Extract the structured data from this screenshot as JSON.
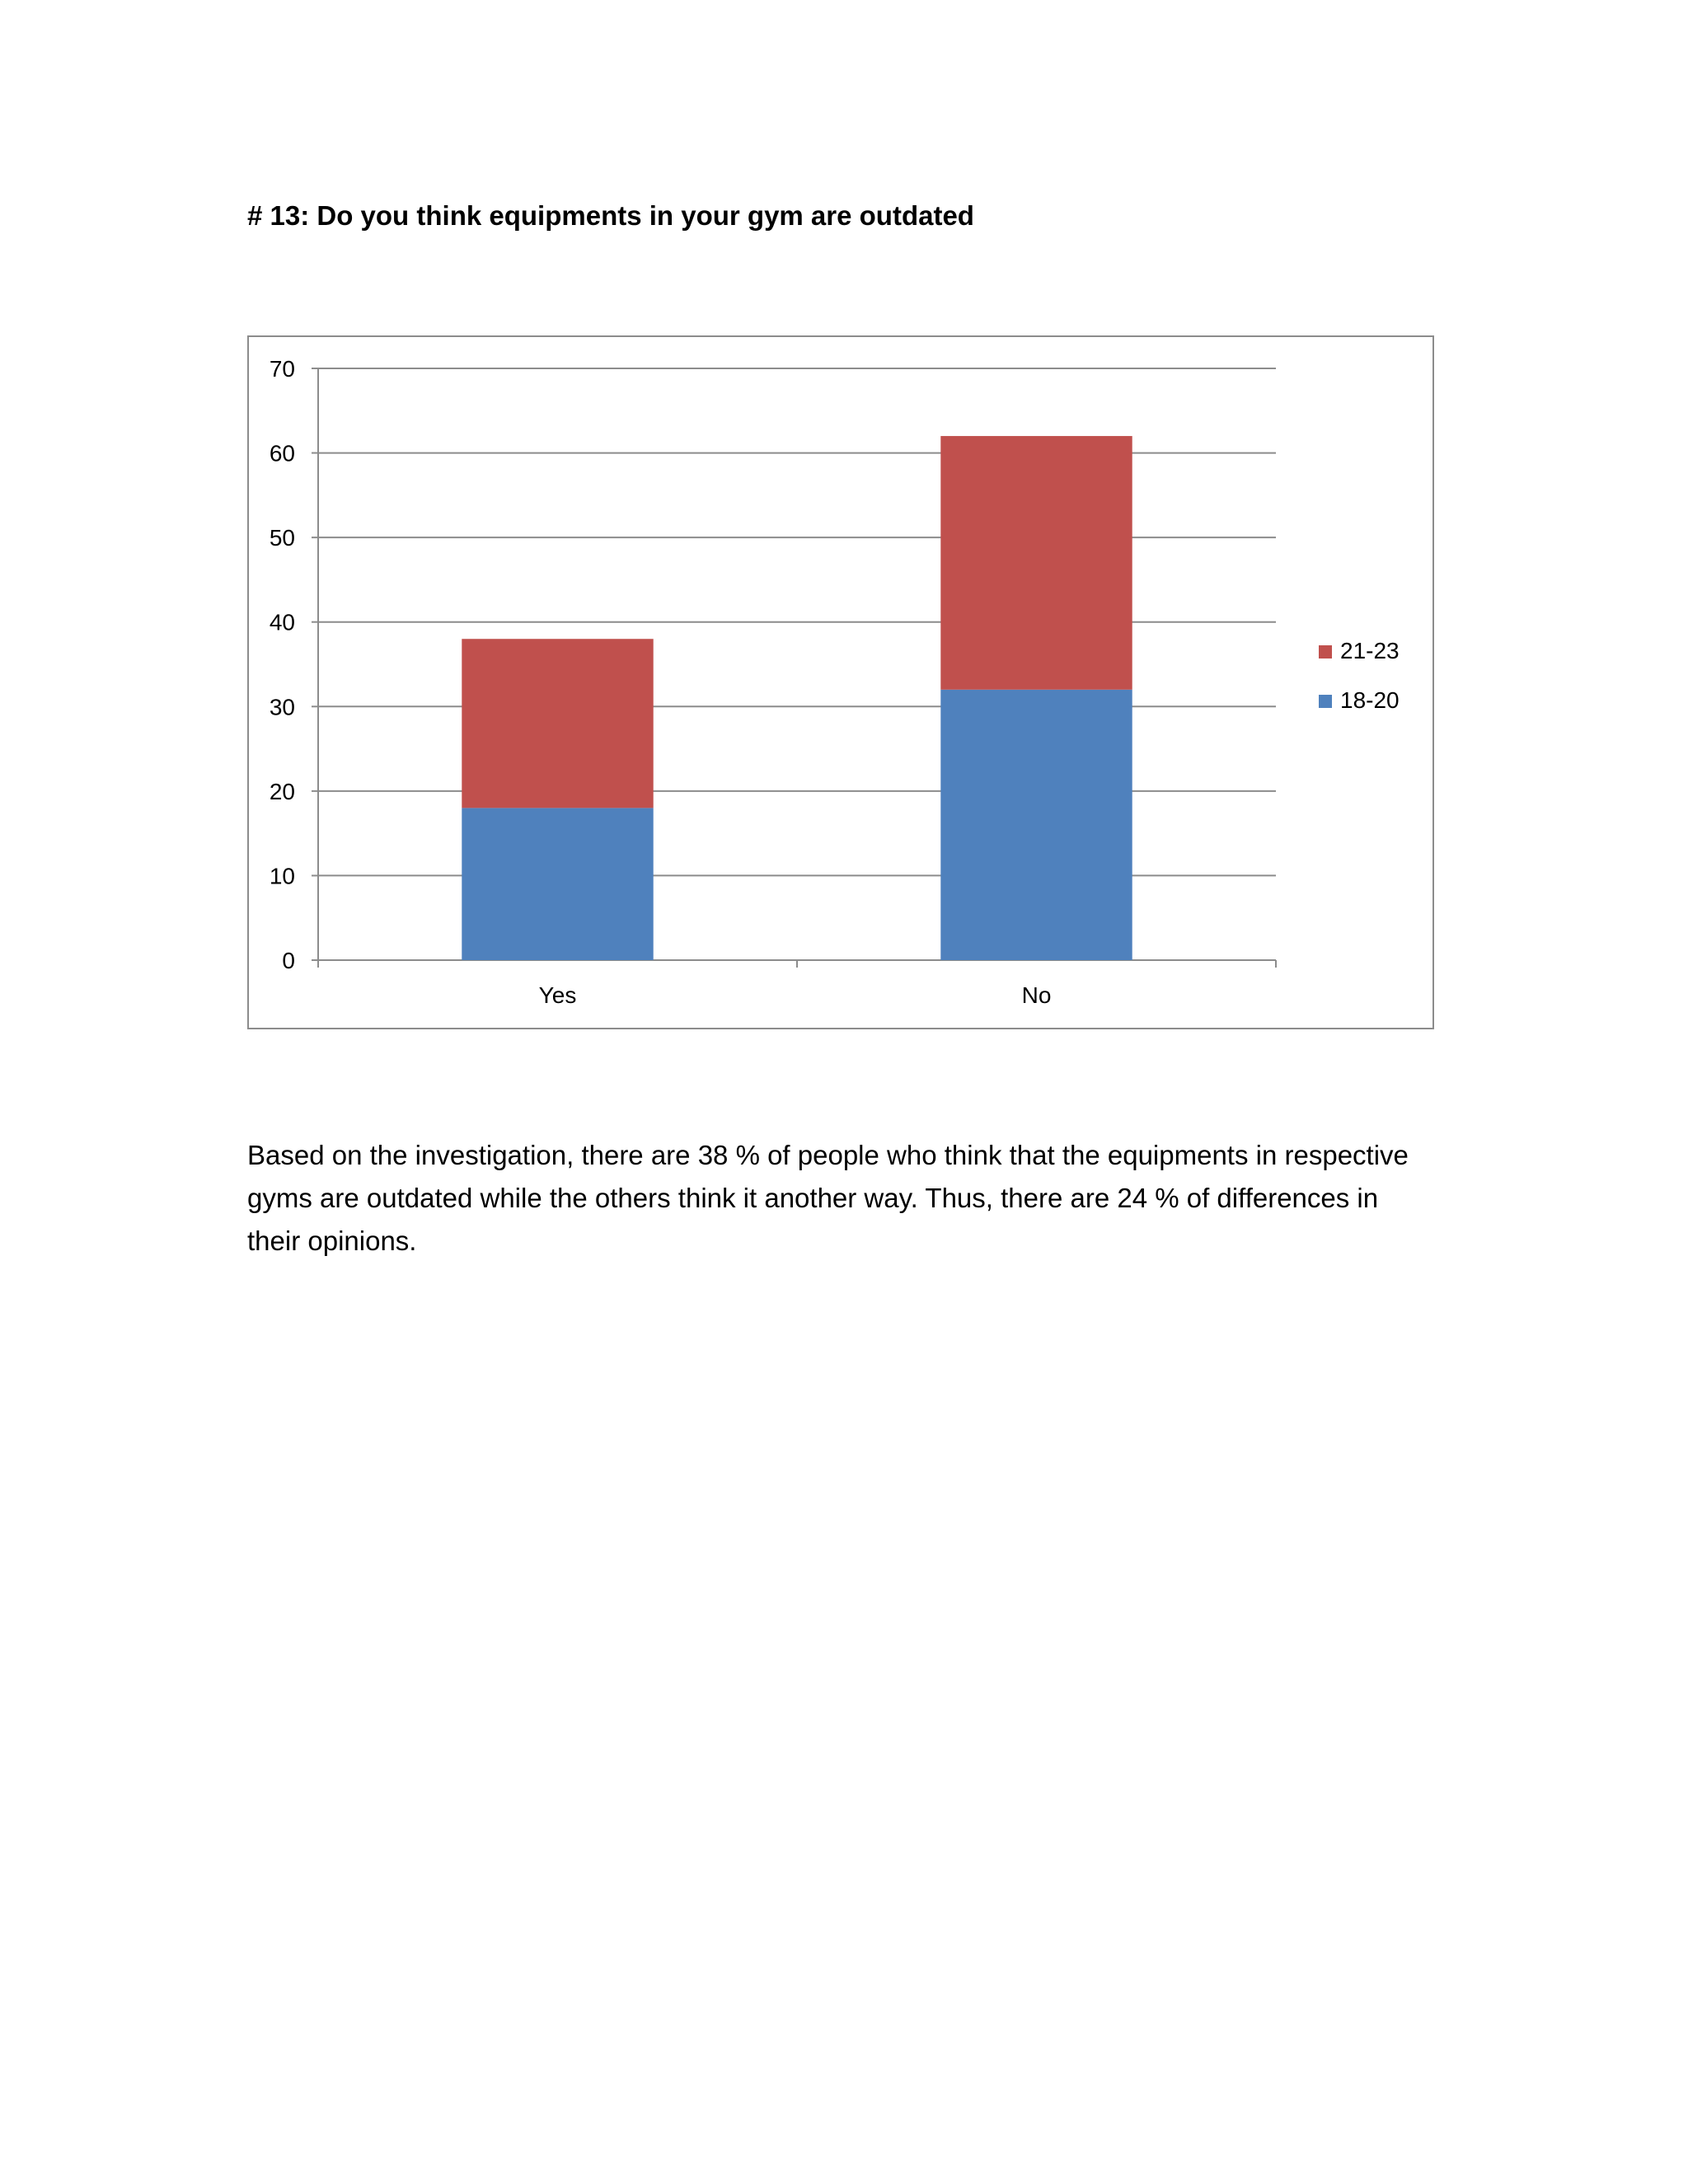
{
  "document": {
    "heading": "# 13: Do you think equipments in your gym are outdated",
    "paragraph": "Based on the investigation, there are 38 % of people who think that the equipments in respective gyms are outdated while the others think it another way. Thus, there are 24 % of differences in their opinions."
  },
  "chart_data": {
    "type": "bar",
    "stacked": true,
    "categories": [
      "Yes",
      "No"
    ],
    "series": [
      {
        "name": "18-20",
        "values": [
          18,
          32
        ],
        "color": "#4f81bd"
      },
      {
        "name": "21-23",
        "values": [
          20,
          30
        ],
        "color": "#c0504d"
      }
    ],
    "ylim": [
      0,
      70
    ],
    "yticks": [
      0,
      10,
      20,
      30,
      40,
      50,
      60,
      70
    ],
    "grid": true,
    "legend_position": "right"
  }
}
